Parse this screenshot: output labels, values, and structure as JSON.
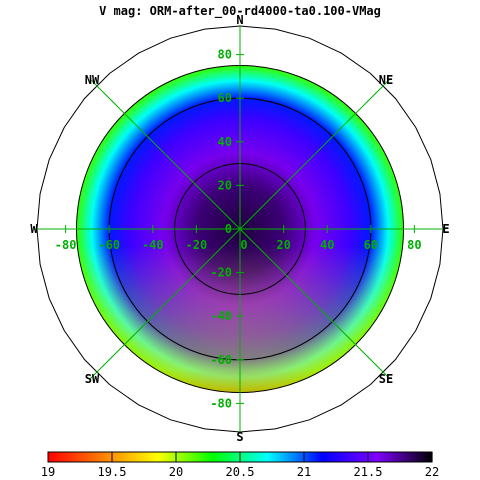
{
  "title": "V mag: ORM-after_00-rd4000-ta0.100-VMag",
  "chart_data": {
    "type": "heatmap",
    "projection": "polar-sky",
    "title": "V mag: ORM-after_00-rd4000-ta0.100-VMag",
    "directions": [
      "N",
      "NE",
      "E",
      "SE",
      "S",
      "SW",
      "W",
      "NW"
    ],
    "x_ticks": [
      -80,
      -60,
      -40,
      -20,
      0,
      20,
      40,
      60,
      80
    ],
    "y_ticks": [
      -80,
      -60,
      -40,
      -20,
      0,
      20,
      40,
      60,
      80
    ],
    "x_tick_labels": [
      "-80",
      "-60",
      "-40",
      "-20",
      "0",
      "20",
      "40",
      "60",
      "80"
    ],
    "y_tick_labels": [
      "-80",
      "-60",
      "-40",
      "-20",
      "0",
      "20",
      "40",
      "60",
      "80"
    ],
    "xlim": [
      -90,
      90
    ],
    "ylim": [
      -90,
      90
    ],
    "zenith_contours_deg": [
      30,
      60,
      75
    ],
    "data_extent_deg": 75,
    "grid": true,
    "vmag_samples": [
      {
        "r": 0,
        "v": 21.9
      },
      {
        "r": 20,
        "v": 21.8
      },
      {
        "r": 35,
        "v": 21.6
      },
      {
        "r": 50,
        "v": 21.35
      },
      {
        "r": 60,
        "v": 21.1
      },
      {
        "r": 68,
        "v": 20.7
      },
      {
        "r": 75,
        "v": 20.2
      }
    ],
    "colorbar": {
      "min": 19,
      "max": 22,
      "tick_labels": [
        "19",
        "19.5",
        "20",
        "20.5",
        "21",
        "21.5",
        "22"
      ],
      "colors": [
        "#ff0000",
        "#ff7f00",
        "#ffff00",
        "#00ff00",
        "#00ffff",
        "#0000ff",
        "#8000ff",
        "#000000"
      ]
    },
    "colors": {
      "grid": "#00b000",
      "contour": "#000000",
      "tick_label": "#00b000"
    }
  }
}
